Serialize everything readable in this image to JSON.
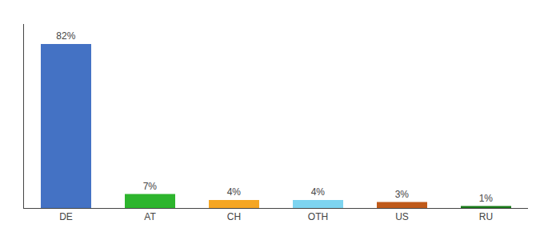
{
  "chart_data": {
    "type": "bar",
    "categories": [
      "DE",
      "AT",
      "CH",
      "OTH",
      "US",
      "RU"
    ],
    "values": [
      82,
      7,
      4,
      4,
      3,
      1
    ],
    "value_labels": [
      "82%",
      "7%",
      "4%",
      "4%",
      "3%",
      "1%"
    ],
    "colors": [
      "#4472c4",
      "#2db52d",
      "#f5a623",
      "#7dd4f0",
      "#c05a1a",
      "#1a7a1a"
    ],
    "ylim": [
      0,
      92
    ],
    "grid": false,
    "data_labels": true,
    "tick_labels": "x"
  }
}
